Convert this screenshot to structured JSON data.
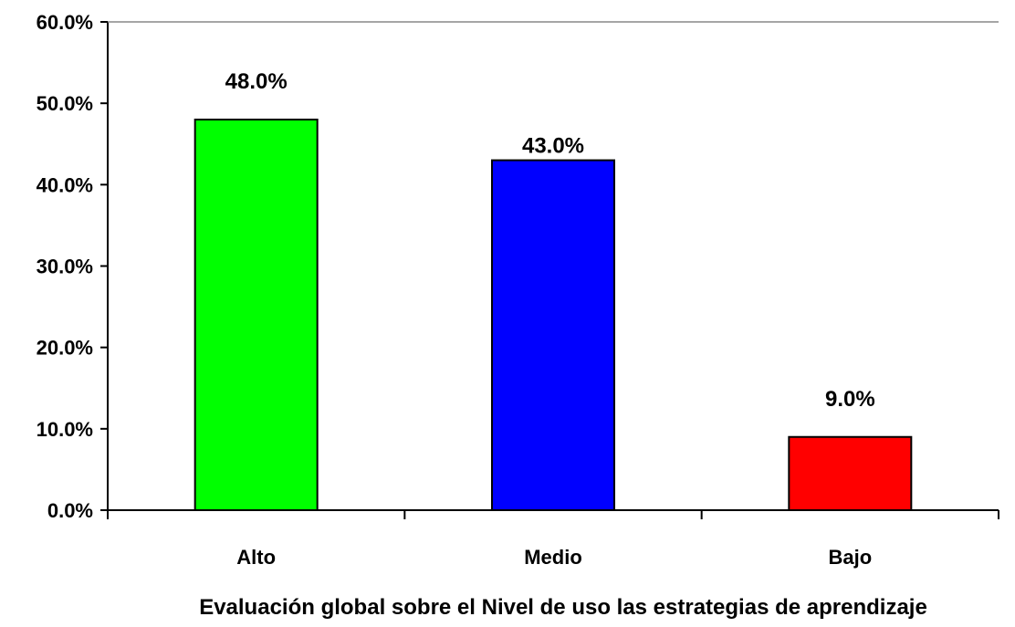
{
  "chart_data": {
    "type": "bar",
    "title": "",
    "xlabel": "Evaluación global sobre el Nivel de uso las estrategias de aprendizaje",
    "ylabel": "",
    "ylim": [
      0,
      60
    ],
    "yticks": [
      0,
      10,
      20,
      30,
      40,
      50,
      60
    ],
    "ytick_labels": [
      "0.0%",
      "10.0%",
      "20.0%",
      "30.0%",
      "40.0%",
      "50.0%",
      "60.0%"
    ],
    "categories": [
      "Alto",
      "Medio",
      "Bajo"
    ],
    "values": [
      48.0,
      43.0,
      9.0
    ],
    "data_labels": [
      "48.0%",
      "43.0%",
      "9.0%"
    ],
    "colors": [
      "#00ff00",
      "#0000ff",
      "#ff0000"
    ],
    "grid": false,
    "legend": "none"
  }
}
